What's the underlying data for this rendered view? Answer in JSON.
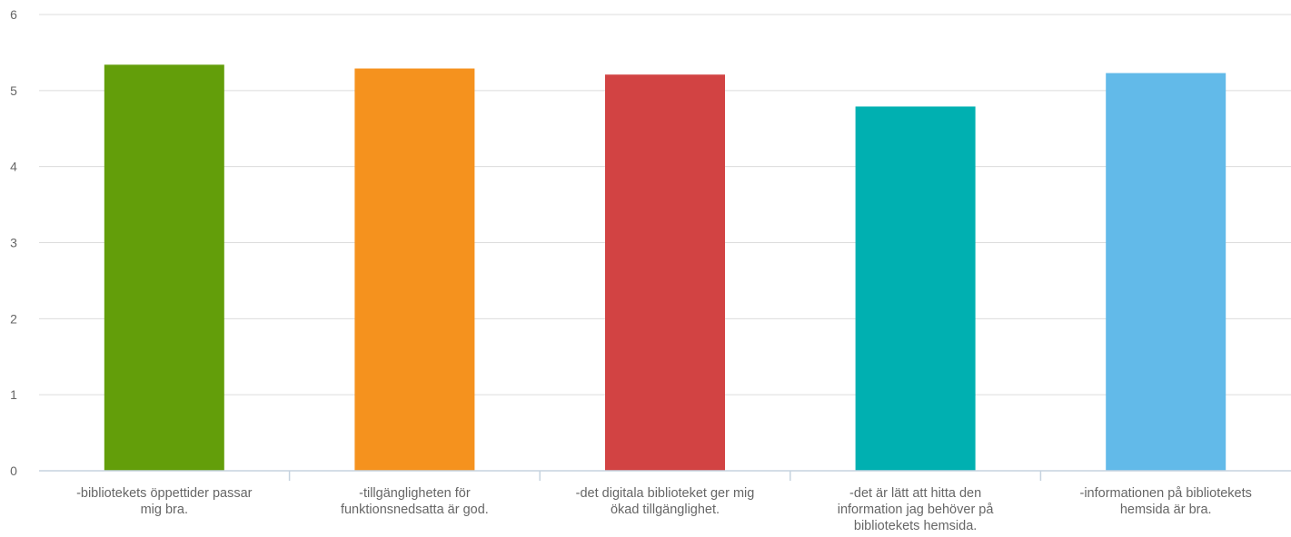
{
  "chart_data": {
    "type": "bar",
    "categories": [
      [
        "-bibliotekets öppettider passar",
        "mig bra."
      ],
      [
        "-tillgängligheten för",
        "funktionsnedsatta är god."
      ],
      [
        "-det digitala biblioteket ger mig",
        "ökad tillgänglighet."
      ],
      [
        "-det är lätt att hitta den",
        "information jag behöver på",
        "bibliotekets hemsida."
      ],
      [
        "-informationen på bibliotekets",
        "hemsida är bra."
      ]
    ],
    "values": [
      5.34,
      5.29,
      5.21,
      4.79,
      5.23
    ],
    "colors": [
      "#639e0a",
      "#f5921e",
      "#d24343",
      "#00b0b1",
      "#62bae9"
    ],
    "ylim": [
      0,
      6
    ],
    "yticks": [
      "0",
      "1",
      "2",
      "3",
      "4",
      "5",
      "6"
    ],
    "title": "",
    "xlabel": "",
    "ylabel": "",
    "grid": true,
    "legend": "none"
  }
}
